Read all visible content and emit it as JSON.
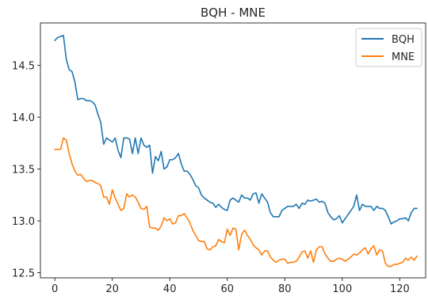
{
  "chart_data": {
    "type": "line",
    "title": "BQH - MNE",
    "xlabel": "",
    "ylabel": "",
    "xlim": [
      -5,
      129
    ],
    "ylim": [
      12.45,
      14.91
    ],
    "x_ticks": [
      0,
      20,
      40,
      60,
      80,
      100,
      120
    ],
    "y_ticks": [
      12.5,
      13.0,
      13.5,
      14.0,
      14.5
    ],
    "grid": false,
    "legend_position": "top-right",
    "series": [
      {
        "name": "BQH",
        "color": "#1f77b4",
        "values": [
          14.74,
          14.77,
          14.78,
          14.79,
          14.56,
          14.46,
          14.44,
          14.34,
          14.17,
          14.18,
          14.18,
          14.16,
          14.16,
          14.15,
          14.12,
          14.03,
          13.95,
          13.74,
          13.8,
          13.78,
          13.76,
          13.8,
          13.68,
          13.61,
          13.8,
          13.8,
          13.79,
          13.65,
          13.8,
          13.65,
          13.8,
          13.73,
          13.71,
          13.73,
          13.46,
          13.62,
          13.58,
          13.67,
          13.5,
          13.52,
          13.59,
          13.59,
          13.61,
          13.65,
          13.55,
          13.48,
          13.48,
          13.45,
          13.4,
          13.34,
          13.32,
          13.25,
          13.22,
          13.2,
          13.18,
          13.17,
          13.13,
          13.16,
          13.13,
          13.11,
          13.1,
          13.2,
          13.22,
          13.2,
          13.18,
          13.25,
          13.22,
          13.22,
          13.2,
          13.26,
          13.27,
          13.17,
          13.26,
          13.22,
          13.18,
          13.08,
          13.04,
          13.04,
          13.04,
          13.1,
          13.12,
          13.14,
          13.14,
          13.14,
          13.16,
          13.12,
          13.17,
          13.16,
          13.2,
          13.19,
          13.2,
          13.21,
          13.18,
          13.19,
          13.17,
          13.08,
          13.04,
          13.01,
          13.02,
          13.05,
          12.98,
          13.02,
          13.06,
          13.1,
          13.14,
          13.25,
          13.1,
          13.16,
          13.14,
          13.14,
          13.14,
          13.1,
          13.14,
          13.12,
          13.12,
          13.1,
          13.04,
          12.97,
          12.99,
          13.0,
          13.02,
          13.02,
          13.03,
          13.0,
          13.08,
          13.12,
          13.12
        ]
      },
      {
        "name": "MNE",
        "color": "#ff7f0e",
        "values": [
          13.69,
          13.69,
          13.69,
          13.8,
          13.78,
          13.65,
          13.55,
          13.48,
          13.44,
          13.45,
          13.41,
          13.38,
          13.39,
          13.39,
          13.37,
          13.36,
          13.34,
          13.23,
          13.23,
          13.16,
          13.3,
          13.22,
          13.16,
          13.1,
          13.12,
          13.26,
          13.23,
          13.25,
          13.23,
          13.18,
          13.12,
          13.11,
          13.14,
          12.94,
          12.93,
          12.93,
          12.91,
          12.95,
          13.03,
          13.0,
          13.02,
          12.97,
          12.98,
          13.05,
          13.05,
          13.07,
          13.03,
          12.98,
          12.91,
          12.86,
          12.81,
          12.8,
          12.8,
          12.73,
          12.72,
          12.75,
          12.76,
          12.82,
          12.8,
          12.79,
          12.92,
          12.86,
          12.93,
          12.92,
          12.72,
          12.87,
          12.91,
          12.86,
          12.82,
          12.77,
          12.74,
          12.72,
          12.67,
          12.71,
          12.71,
          12.65,
          12.62,
          12.6,
          12.62,
          12.63,
          12.63,
          12.59,
          12.6,
          12.6,
          12.61,
          12.65,
          12.7,
          12.71,
          12.64,
          12.71,
          12.6,
          12.72,
          12.75,
          12.75,
          12.68,
          12.64,
          12.61,
          12.61,
          12.63,
          12.64,
          12.63,
          12.61,
          12.63,
          12.65,
          12.68,
          12.67,
          12.69,
          12.72,
          12.74,
          12.68,
          12.73,
          12.76,
          12.67,
          12.72,
          12.71,
          12.59,
          12.56,
          12.56,
          12.58,
          12.58,
          12.59,
          12.6,
          12.64,
          12.62,
          12.65,
          12.62,
          12.66
        ]
      }
    ]
  }
}
